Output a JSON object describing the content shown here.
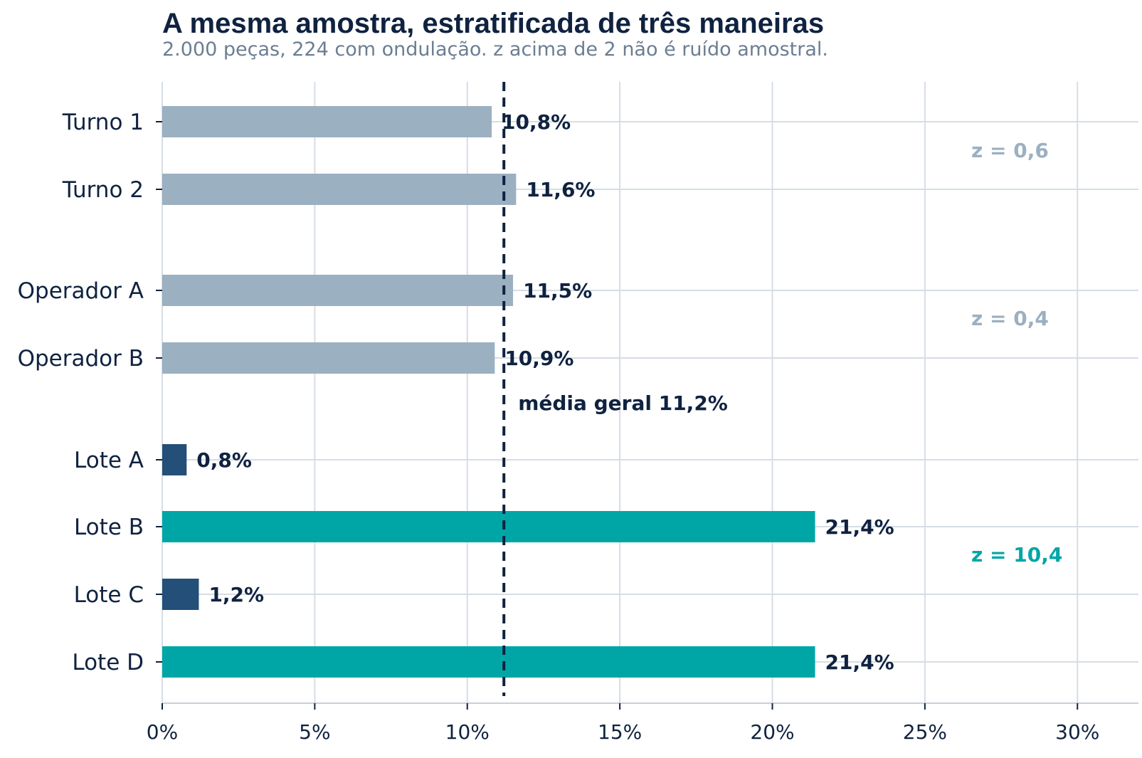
{
  "chart_data": {
    "type": "bar",
    "orientation": "horizontal",
    "title": "A mesma amostra, estratificada de três maneiras",
    "subtitle": "2.000 peças, 224 com ondulação. z acima de 2 não é ruído amostral.",
    "xlim": [
      0,
      32
    ],
    "x_ticks": [
      0,
      5,
      10,
      15,
      20,
      25,
      30
    ],
    "x_tick_labels": [
      "0%",
      "5%",
      "10%",
      "15%",
      "20%",
      "25%",
      "30%"
    ],
    "grid": true,
    "bars": [
      {
        "category": "Turno 1",
        "value": 10.8,
        "label": "10,8%",
        "color": "#9bb0c1"
      },
      {
        "category": "Turno 2",
        "value": 11.6,
        "label": "11,6%",
        "color": "#9bb0c1"
      },
      {
        "category": "Operador A",
        "value": 11.5,
        "label": "11,5%",
        "color": "#9bb0c1"
      },
      {
        "category": "Operador B",
        "value": 10.9,
        "label": "10,9%",
        "color": "#9bb0c1"
      },
      {
        "category": "Lote A",
        "value": 0.8,
        "label": "0,8%",
        "color": "#234f78"
      },
      {
        "category": "Lote B",
        "value": 21.4,
        "label": "21,4%",
        "color": "#00a6a6"
      },
      {
        "category": "Lote C",
        "value": 1.2,
        "label": "1,2%",
        "color": "#234f78"
      },
      {
        "category": "Lote D",
        "value": 21.4,
        "label": "21,4%",
        "color": "#00a6a6"
      }
    ],
    "groups": [
      {
        "members": [
          "Turno 1",
          "Turno 2"
        ],
        "z_label": "z = 0,6",
        "color": "#9bb0c1"
      },
      {
        "members": [
          "Operador A",
          "Operador B"
        ],
        "z_label": "z = 0,4",
        "color": "#9bb0c1"
      },
      {
        "members": [
          "Lote A",
          "Lote B",
          "Lote C",
          "Lote D"
        ],
        "z_label": "z = 10,4",
        "color": "#00a6a6"
      }
    ],
    "reference_line": {
      "value": 11.2,
      "label": "média geral 11,2%",
      "style": "dashed",
      "color": "#0f2240"
    }
  }
}
